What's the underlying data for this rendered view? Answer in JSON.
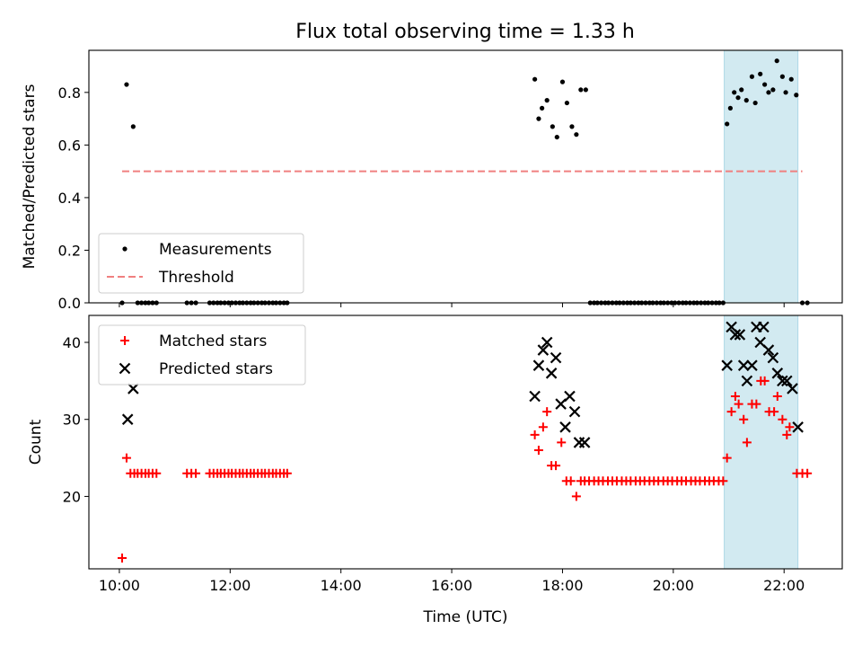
{
  "title": "Flux total observing time = 1.33 h",
  "chart_data": [
    {
      "type": "scatter",
      "ylabel": "Matched/Predicted stars",
      "xlim_hours": [
        9.45,
        23.05
      ],
      "ylim": [
        0,
        0.96
      ],
      "yticks": [
        "0.0",
        "0.2",
        "0.4",
        "0.6",
        "0.8"
      ],
      "ytick_values": [
        0.0,
        0.2,
        0.4,
        0.6,
        0.8
      ],
      "legend_position": "lower-left",
      "highlight_span_hours": [
        20.92,
        22.25
      ],
      "highlight_color": "#add8e6",
      "series": [
        {
          "name": "Measurements",
          "kind": "dot",
          "color": "#000000",
          "points": [
            [
              10.05,
              0
            ],
            [
              10.13,
              0.83
            ],
            [
              10.25,
              0.67
            ],
            [
              10.33,
              0
            ],
            [
              10.4,
              0
            ],
            [
              10.47,
              0
            ],
            [
              10.53,
              0
            ],
            [
              10.6,
              0
            ],
            [
              10.67,
              0
            ],
            [
              11.22,
              0
            ],
            [
              11.3,
              0
            ],
            [
              11.38,
              0
            ],
            [
              11.63,
              0
            ],
            [
              11.7,
              0
            ],
            [
              11.77,
              0
            ],
            [
              11.83,
              0
            ],
            [
              11.9,
              0
            ],
            [
              11.97,
              0
            ],
            [
              12.03,
              0
            ],
            [
              12.1,
              0
            ],
            [
              12.17,
              0
            ],
            [
              12.23,
              0
            ],
            [
              12.3,
              0
            ],
            [
              12.37,
              0
            ],
            [
              12.43,
              0
            ],
            [
              12.5,
              0
            ],
            [
              12.57,
              0
            ],
            [
              12.63,
              0
            ],
            [
              12.7,
              0
            ],
            [
              12.77,
              0
            ],
            [
              12.83,
              0
            ],
            [
              12.9,
              0
            ],
            [
              12.97,
              0
            ],
            [
              13.03,
              0
            ],
            [
              17.5,
              0.85
            ],
            [
              17.57,
              0.7
            ],
            [
              17.63,
              0.74
            ],
            [
              17.72,
              0.77
            ],
            [
              17.82,
              0.67
            ],
            [
              17.9,
              0.63
            ],
            [
              18.0,
              0.84
            ],
            [
              18.08,
              0.76
            ],
            [
              18.17,
              0.67
            ],
            [
              18.25,
              0.64
            ],
            [
              18.33,
              0.81
            ],
            [
              18.42,
              0.81
            ],
            [
              18.5,
              0
            ],
            [
              18.57,
              0
            ],
            [
              18.63,
              0
            ],
            [
              18.7,
              0
            ],
            [
              18.77,
              0
            ],
            [
              18.83,
              0
            ],
            [
              18.9,
              0
            ],
            [
              18.97,
              0
            ],
            [
              19.03,
              0
            ],
            [
              19.1,
              0
            ],
            [
              19.17,
              0
            ],
            [
              19.23,
              0
            ],
            [
              19.3,
              0
            ],
            [
              19.37,
              0
            ],
            [
              19.43,
              0
            ],
            [
              19.5,
              0
            ],
            [
              19.57,
              0
            ],
            [
              19.63,
              0
            ],
            [
              19.7,
              0
            ],
            [
              19.77,
              0
            ],
            [
              19.83,
              0
            ],
            [
              19.9,
              0
            ],
            [
              19.97,
              0
            ],
            [
              20.03,
              0
            ],
            [
              20.1,
              0
            ],
            [
              20.17,
              0
            ],
            [
              20.23,
              0
            ],
            [
              20.3,
              0
            ],
            [
              20.37,
              0
            ],
            [
              20.43,
              0
            ],
            [
              20.5,
              0
            ],
            [
              20.57,
              0
            ],
            [
              20.63,
              0
            ],
            [
              20.7,
              0
            ],
            [
              20.77,
              0
            ],
            [
              20.83,
              0
            ],
            [
              20.9,
              0
            ],
            [
              20.97,
              0.68
            ],
            [
              21.03,
              0.74
            ],
            [
              21.1,
              0.8
            ],
            [
              21.17,
              0.78
            ],
            [
              21.23,
              0.81
            ],
            [
              21.32,
              0.77
            ],
            [
              21.42,
              0.86
            ],
            [
              21.48,
              0.76
            ],
            [
              21.57,
              0.87
            ],
            [
              21.65,
              0.83
            ],
            [
              21.72,
              0.8
            ],
            [
              21.8,
              0.81
            ],
            [
              21.87,
              0.92
            ],
            [
              21.97,
              0.86
            ],
            [
              22.03,
              0.8
            ],
            [
              22.13,
              0.85
            ],
            [
              22.22,
              0.79
            ],
            [
              22.33,
              0
            ],
            [
              22.42,
              0
            ]
          ]
        },
        {
          "name": "Threshold",
          "kind": "dashed-line",
          "color": "#f08080",
          "x": [
            10.05,
            22.33
          ],
          "y": [
            0.5,
            0.5
          ]
        }
      ]
    },
    {
      "type": "scatter",
      "ylabel": "Count",
      "xlabel": "Time (UTC)",
      "xlim_hours": [
        9.45,
        23.05
      ],
      "ylim": [
        10.6,
        43.5
      ],
      "yticks": [
        "20",
        "30",
        "40"
      ],
      "ytick_values": [
        20,
        30,
        40
      ],
      "xticks": [
        "10:00",
        "12:00",
        "14:00",
        "16:00",
        "18:00",
        "20:00",
        "22:00"
      ],
      "xtick_values": [
        10,
        12,
        14,
        16,
        18,
        20,
        22
      ],
      "legend_position": "upper-left",
      "highlight_span_hours": [
        20.92,
        22.25
      ],
      "highlight_color": "#add8e6",
      "series": [
        {
          "name": "Matched stars",
          "kind": "plus",
          "color": "#ff0000",
          "points": [
            [
              10.05,
              12
            ],
            [
              10.13,
              25
            ],
            [
              10.2,
              23
            ],
            [
              10.27,
              23
            ],
            [
              10.33,
              23
            ],
            [
              10.4,
              23
            ],
            [
              10.47,
              23
            ],
            [
              10.53,
              23
            ],
            [
              10.6,
              23
            ],
            [
              10.67,
              23
            ],
            [
              11.22,
              23
            ],
            [
              11.3,
              23
            ],
            [
              11.38,
              23
            ],
            [
              11.63,
              23
            ],
            [
              11.7,
              23
            ],
            [
              11.77,
              23
            ],
            [
              11.83,
              23
            ],
            [
              11.9,
              23
            ],
            [
              11.97,
              23
            ],
            [
              12.03,
              23
            ],
            [
              12.1,
              23
            ],
            [
              12.17,
              23
            ],
            [
              12.23,
              23
            ],
            [
              12.3,
              23
            ],
            [
              12.37,
              23
            ],
            [
              12.43,
              23
            ],
            [
              12.5,
              23
            ],
            [
              12.57,
              23
            ],
            [
              12.63,
              23
            ],
            [
              12.7,
              23
            ],
            [
              12.77,
              23
            ],
            [
              12.83,
              23
            ],
            [
              12.9,
              23
            ],
            [
              12.97,
              23
            ],
            [
              13.03,
              23
            ],
            [
              17.5,
              28
            ],
            [
              17.57,
              26
            ],
            [
              17.65,
              29
            ],
            [
              17.72,
              31
            ],
            [
              17.8,
              24
            ],
            [
              17.88,
              24
            ],
            [
              17.98,
              27
            ],
            [
              18.07,
              22
            ],
            [
              18.15,
              22
            ],
            [
              18.25,
              20
            ],
            [
              18.33,
              22
            ],
            [
              18.4,
              22
            ],
            [
              18.48,
              22
            ],
            [
              18.57,
              22
            ],
            [
              18.65,
              22
            ],
            [
              18.73,
              22
            ],
            [
              18.82,
              22
            ],
            [
              18.9,
              22
            ],
            [
              18.98,
              22
            ],
            [
              19.07,
              22
            ],
            [
              19.15,
              22
            ],
            [
              19.23,
              22
            ],
            [
              19.32,
              22
            ],
            [
              19.4,
              22
            ],
            [
              19.48,
              22
            ],
            [
              19.57,
              22
            ],
            [
              19.65,
              22
            ],
            [
              19.73,
              22
            ],
            [
              19.82,
              22
            ],
            [
              19.9,
              22
            ],
            [
              19.98,
              22
            ],
            [
              20.07,
              22
            ],
            [
              20.15,
              22
            ],
            [
              20.23,
              22
            ],
            [
              20.32,
              22
            ],
            [
              20.4,
              22
            ],
            [
              20.48,
              22
            ],
            [
              20.57,
              22
            ],
            [
              20.65,
              22
            ],
            [
              20.73,
              22
            ],
            [
              20.82,
              22
            ],
            [
              20.9,
              22
            ],
            [
              20.97,
              25
            ],
            [
              21.05,
              31
            ],
            [
              21.12,
              33
            ],
            [
              21.18,
              32
            ],
            [
              21.27,
              30
            ],
            [
              21.33,
              27
            ],
            [
              21.42,
              32
            ],
            [
              21.5,
              32
            ],
            [
              21.58,
              35
            ],
            [
              21.65,
              35
            ],
            [
              21.73,
              31
            ],
            [
              21.82,
              31
            ],
            [
              21.88,
              33
            ],
            [
              21.97,
              30
            ],
            [
              22.05,
              28
            ],
            [
              22.1,
              29
            ],
            [
              22.23,
              23
            ],
            [
              22.33,
              23
            ],
            [
              22.42,
              23
            ]
          ]
        },
        {
          "name": "Predicted stars",
          "kind": "x",
          "color": "#000000",
          "points": [
            [
              10.15,
              30
            ],
            [
              10.25,
              34
            ],
            [
              17.5,
              33
            ],
            [
              17.57,
              37
            ],
            [
              17.65,
              39
            ],
            [
              17.72,
              40
            ],
            [
              17.8,
              36
            ],
            [
              17.88,
              38
            ],
            [
              17.97,
              32
            ],
            [
              18.05,
              29
            ],
            [
              18.13,
              33
            ],
            [
              18.22,
              31
            ],
            [
              18.3,
              27
            ],
            [
              18.4,
              27
            ],
            [
              20.97,
              37
            ],
            [
              21.05,
              42
            ],
            [
              21.12,
              41
            ],
            [
              21.2,
              41
            ],
            [
              21.27,
              37
            ],
            [
              21.33,
              35
            ],
            [
              21.42,
              37
            ],
            [
              21.5,
              42
            ],
            [
              21.57,
              40
            ],
            [
              21.63,
              42
            ],
            [
              21.72,
              39
            ],
            [
              21.8,
              38
            ],
            [
              21.88,
              36
            ],
            [
              21.97,
              35
            ],
            [
              22.05,
              35
            ],
            [
              22.15,
              34
            ],
            [
              22.25,
              29
            ]
          ]
        }
      ]
    }
  ]
}
